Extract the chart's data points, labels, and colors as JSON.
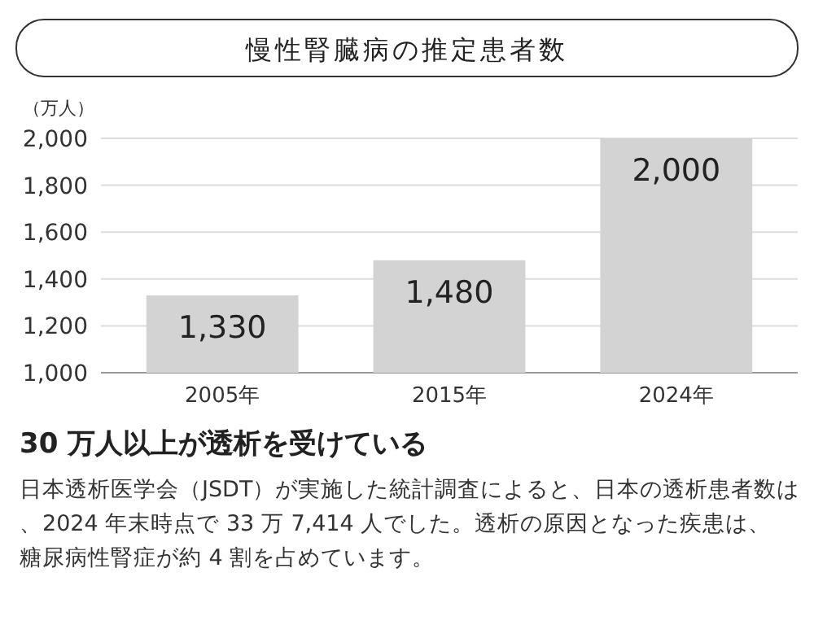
{
  "chart_data": {
    "type": "bar",
    "title": "慢性腎臓病の推定患者数",
    "ylabel": "（万人）",
    "categories": [
      "2005年",
      "2015年",
      "2024年"
    ],
    "values": [
      1330,
      1480,
      2000
    ],
    "color": "#d3d3d3",
    "ylim": [
      1000,
      2000
    ],
    "yticks": [
      {
        "value": 1000,
        "label": "1,000"
      },
      {
        "value": 1200,
        "label": "1,200"
      },
      {
        "value": 1400,
        "label": "1,400"
      },
      {
        "value": 1600,
        "label": "1,600"
      },
      {
        "value": 1800,
        "label": "1,800"
      },
      {
        "value": 2000,
        "label": "2,000"
      }
    ],
    "grid": "y",
    "value_labels": [
      "1,330",
      "1,480",
      "2,000"
    ],
    "annotations": [
      "30 万人以上が透析を受けている",
      "日本透析医学会（JSDT）が実施した統計調査によると、日本の透析患者数は、2024 年末時点で 33 万 7,414 人でした。透析の原因となった疾患は、糖尿病性腎症が約 4 割を占めています。"
    ]
  }
}
